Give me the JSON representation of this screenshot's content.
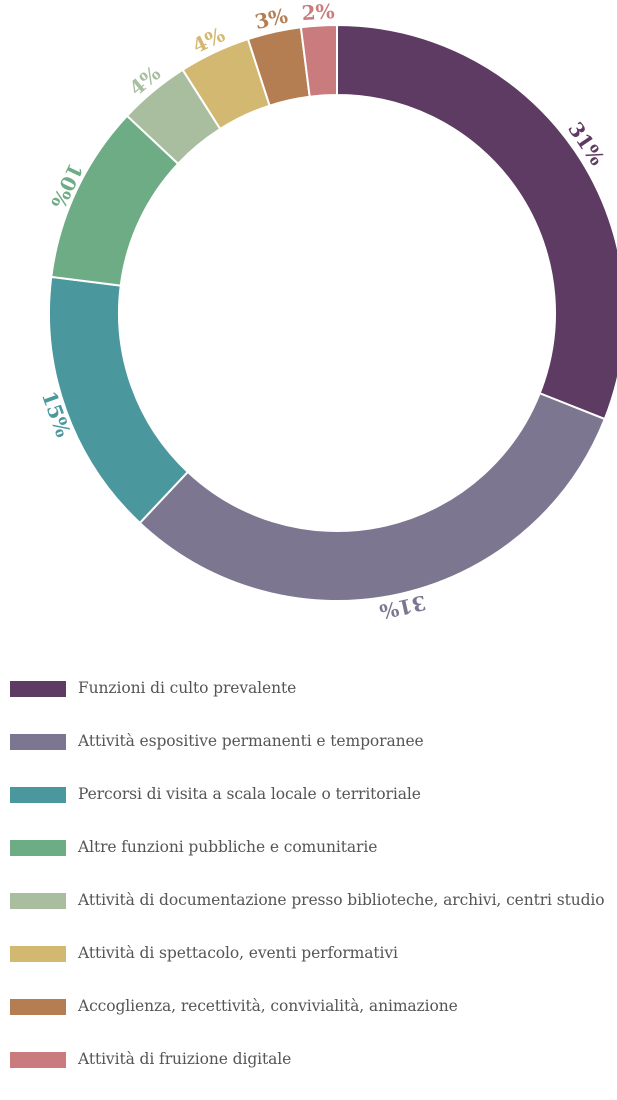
{
  "chart_data": {
    "type": "pie",
    "title": "",
    "slices": [
      {
        "label": "Funzioni di culto prevalente",
        "value": 31,
        "display": "31%",
        "color": "#5e3b63"
      },
      {
        "label": "Attività espositive permanenti e temporanee",
        "value": 31,
        "display": "31%",
        "color": "#7c7691"
      },
      {
        "label": "Percorsi di visita a scala locale o territoriale",
        "value": 15,
        "display": "15%",
        "color": "#4a979e"
      },
      {
        "label": "Altre funzioni pubbliche e comunitarie",
        "value": 10,
        "display": "10%",
        "color": "#6dac85"
      },
      {
        "label": "Attività di documentazione presso biblioteche, archivi, centri studio",
        "value": 4,
        "display": "4%",
        "color": "#a8be9f"
      },
      {
        "label": "Attività di spettacolo, eventi performativi",
        "value": 4,
        "display": "4%",
        "color": "#d3b871"
      },
      {
        "label": "Accoglienza, recettività, convivialità, animazione",
        "value": 3,
        "display": "3%",
        "color": "#b47e52"
      },
      {
        "label": "Attività di fruizione digitale",
        "value": 2,
        "display": "2%",
        "color": "#c97b7e"
      }
    ],
    "donut": true,
    "start_angle": "top",
    "direction": "clockwise",
    "legend_position": "bottom-left"
  }
}
